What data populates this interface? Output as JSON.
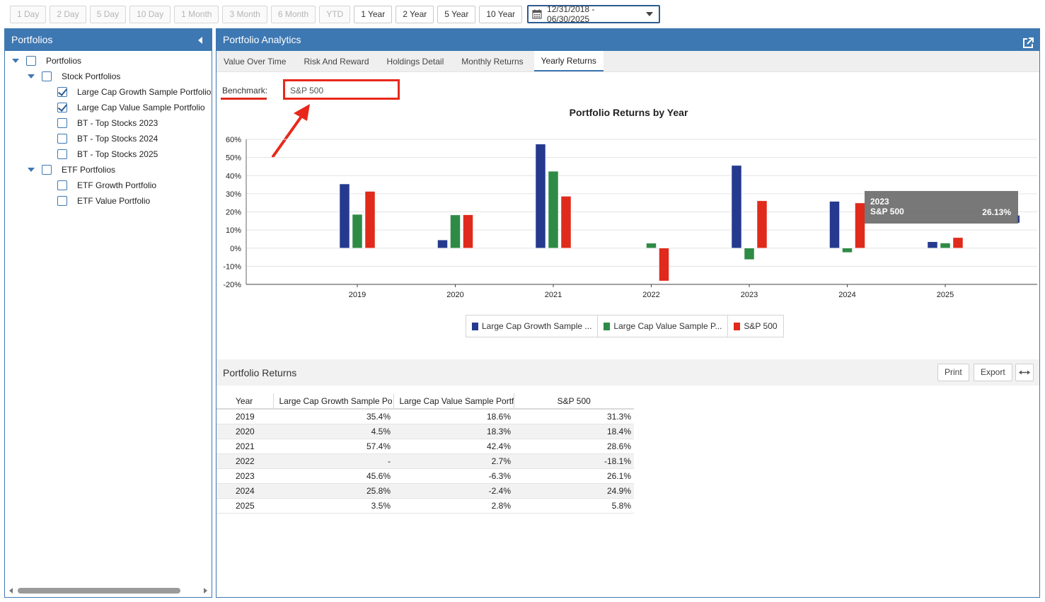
{
  "toolbar": {
    "ranges": [
      {
        "label": "1 Day",
        "enabled": false
      },
      {
        "label": "2 Day",
        "enabled": false
      },
      {
        "label": "5 Day",
        "enabled": false
      },
      {
        "label": "10 Day",
        "enabled": false
      },
      {
        "label": "1 Month",
        "enabled": false
      },
      {
        "label": "3 Month",
        "enabled": false
      },
      {
        "label": "6 Month",
        "enabled": false
      },
      {
        "label": "YTD",
        "enabled": false
      },
      {
        "label": "1 Year",
        "enabled": true
      },
      {
        "label": "2 Year",
        "enabled": true
      },
      {
        "label": "5 Year",
        "enabled": true
      },
      {
        "label": "10 Year",
        "enabled": true
      }
    ],
    "date_range": "12/31/2018 - 06/30/2025"
  },
  "left_panel": {
    "title": "Portfolios",
    "tree": [
      {
        "label": "Portfolios",
        "level": 0,
        "expandable": true,
        "checked": false
      },
      {
        "label": "Stock Portfolios",
        "level": 1,
        "expandable": true,
        "checked": false
      },
      {
        "label": "Large Cap Growth Sample Portfolio",
        "level": 2,
        "expandable": false,
        "checked": true
      },
      {
        "label": "Large Cap Value Sample Portfolio",
        "level": 2,
        "expandable": false,
        "checked": true
      },
      {
        "label": "BT - Top Stocks 2023",
        "level": 2,
        "expandable": false,
        "checked": false
      },
      {
        "label": "BT - Top Stocks 2024",
        "level": 2,
        "expandable": false,
        "checked": false
      },
      {
        "label": "BT - Top Stocks 2025",
        "level": 2,
        "expandable": false,
        "checked": false
      },
      {
        "label": "ETF Portfolios",
        "level": 1,
        "expandable": true,
        "checked": false
      },
      {
        "label": "ETF Growth Portfolio",
        "level": 2,
        "expandable": false,
        "checked": false
      },
      {
        "label": "ETF Value Portfolio",
        "level": 2,
        "expandable": false,
        "checked": false
      }
    ]
  },
  "right_panel": {
    "title": "Portfolio Analytics",
    "tabs": [
      {
        "label": "Value Over Time",
        "active": false
      },
      {
        "label": "Risk And Reward",
        "active": false
      },
      {
        "label": "Holdings Detail",
        "active": false
      },
      {
        "label": "Monthly Returns",
        "active": false
      },
      {
        "label": "Yearly Returns",
        "active": true
      }
    ],
    "benchmark_label": "Benchmark:",
    "benchmark_value": "S&P 500"
  },
  "chart_data": {
    "type": "bar",
    "title": "Portfolio Returns by Year",
    "categories": [
      "2019",
      "2020",
      "2021",
      "2022",
      "2023",
      "2024",
      "2025"
    ],
    "series": [
      {
        "name": "Large Cap Growth Sample ...",
        "color": "#253a8e",
        "values": [
          35.4,
          4.5,
          57.4,
          null,
          45.6,
          25.8,
          3.5
        ]
      },
      {
        "name": "Large Cap Value Sample P...",
        "color": "#2e8b45",
        "values": [
          18.6,
          18.3,
          42.4,
          2.7,
          -6.3,
          -2.4,
          2.8
        ]
      },
      {
        "name": "S&P 500",
        "color": "#e02a1c",
        "values": [
          31.3,
          18.4,
          28.6,
          -18.1,
          26.1,
          24.9,
          5.8
        ]
      }
    ],
    "ylim": [
      -20,
      60
    ],
    "yticks": [
      -20,
      -10,
      0,
      10,
      20,
      30,
      40,
      50,
      60
    ],
    "ytick_labels": [
      "-20%",
      "-10%",
      "0%",
      "10%",
      "20%",
      "30%",
      "40%",
      "50%",
      "60%"
    ],
    "grid": true,
    "legend": "bottom-center"
  },
  "tooltip": {
    "year": "2023",
    "series": "S&P 500",
    "value": "26.13%"
  },
  "returns": {
    "title": "Portfolio Returns",
    "buttons": {
      "print": "Print",
      "export": "Export"
    },
    "columns": [
      "Year",
      "Large Cap Growth Sample Po",
      "Large Cap Value Sample Portf",
      "S&P 500"
    ],
    "rows": [
      [
        "2019",
        "35.4%",
        "18.6%",
        "31.3%"
      ],
      [
        "2020",
        "4.5%",
        "18.3%",
        "18.4%"
      ],
      [
        "2021",
        "57.4%",
        "42.4%",
        "28.6%"
      ],
      [
        "2022",
        "-",
        "2.7%",
        "-18.1%"
      ],
      [
        "2023",
        "45.6%",
        "-6.3%",
        "26.1%"
      ],
      [
        "2024",
        "25.8%",
        "-2.4%",
        "24.9%"
      ],
      [
        "2025",
        "3.5%",
        "2.8%",
        "5.8%"
      ]
    ]
  }
}
